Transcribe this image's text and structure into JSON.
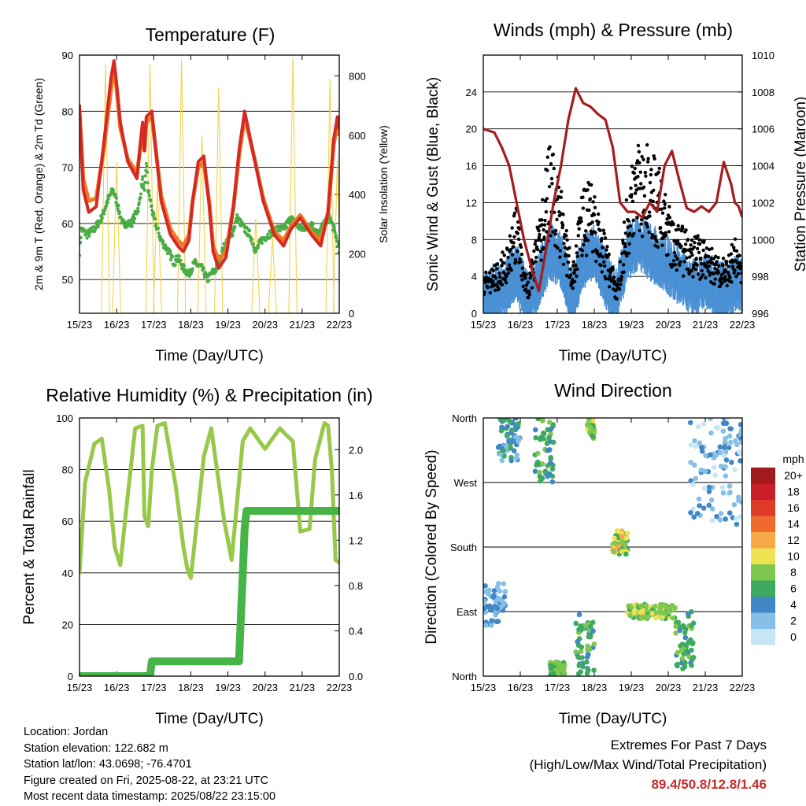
{
  "x_ticks": [
    "15/23",
    "16/23",
    "17/23",
    "18/23",
    "19/23",
    "20/23",
    "21/23",
    "22/23"
  ],
  "colors": {
    "t2m": "#d42a22",
    "t9m": "#f07a28",
    "td": "#4aac44",
    "solar": "#f5d24a",
    "wind": "#4a90d4",
    "gust": "#000000",
    "pressure": "#a41c1c",
    "rh": "#98c848",
    "precip": "#46b446",
    "extreme": "#cc2a2a"
  },
  "chart_data": [
    {
      "type": "line",
      "title": "Temperature (F)",
      "xlabel": "Time (Day/UTC)",
      "ylabel": "2m & 9m T (Red, Orange) & 2m Td (Green)",
      "y2label": "Solar Insolation (Yellow)",
      "x_ticks": [
        "15/23",
        "16/23",
        "17/23",
        "18/23",
        "19/23",
        "20/23",
        "21/23",
        "22/23"
      ],
      "x_unit": "days since 15/23",
      "xlim": [
        0,
        7
      ],
      "ylim": [
        44,
        90
      ],
      "yticks": [
        50,
        60,
        70,
        80,
        90
      ],
      "y2lim": [
        0,
        870
      ],
      "y2ticks": [
        0,
        200,
        400,
        600,
        800
      ],
      "series": [
        {
          "name": "2m T",
          "axis": "left",
          "color": "#d42a22",
          "x": [
            0,
            0.1,
            0.25,
            0.45,
            0.65,
            0.85,
            0.93,
            1.0,
            1.1,
            1.3,
            1.55,
            1.65,
            1.7,
            1.75,
            1.8,
            1.95,
            2.2,
            2.45,
            2.65,
            2.8,
            2.95,
            3.05,
            3.2,
            3.35,
            3.5,
            3.6,
            3.75,
            3.95,
            4.15,
            4.3,
            4.45,
            4.7,
            4.95,
            5.25,
            5.5,
            5.7,
            5.95,
            6.25,
            6.5,
            6.7,
            6.85,
            6.95,
            7.0
          ],
          "y": [
            81,
            66,
            62,
            63,
            74,
            86,
            89,
            85,
            78,
            71,
            68,
            75,
            78,
            73,
            79,
            80,
            64,
            58,
            56,
            55,
            57,
            64,
            71,
            72,
            63,
            55,
            52,
            54,
            63,
            73,
            80,
            72,
            64,
            58,
            56,
            59,
            61,
            58,
            56,
            62,
            75,
            79,
            77
          ]
        },
        {
          "name": "9m T",
          "axis": "left",
          "color": "#f07a28",
          "x": [
            0,
            0.1,
            0.25,
            0.45,
            0.65,
            0.85,
            0.93,
            1.0,
            1.1,
            1.3,
            1.55,
            1.65,
            1.7,
            1.75,
            1.8,
            1.95,
            2.2,
            2.45,
            2.65,
            2.8,
            2.95,
            3.05,
            3.2,
            3.35,
            3.5,
            3.6,
            3.75,
            3.95,
            4.15,
            4.3,
            4.45,
            4.7,
            4.95,
            5.25,
            5.5,
            5.7,
            5.95,
            6.25,
            6.5,
            6.7,
            6.85,
            6.95,
            7.0
          ],
          "y": [
            80,
            68,
            64,
            64.5,
            73,
            84,
            87.5,
            84,
            77,
            71.5,
            69,
            74,
            77,
            73,
            78,
            79,
            65,
            59,
            57,
            56,
            58,
            64,
            70,
            71,
            63.5,
            56,
            53.5,
            55,
            63,
            72,
            79,
            72,
            64.5,
            58.5,
            57,
            59.5,
            61.5,
            58.5,
            57,
            62,
            74,
            78,
            76
          ]
        },
        {
          "name": "2m Td",
          "axis": "left",
          "color": "#4aac44",
          "x": [
            0,
            0.05,
            0.2,
            0.4,
            0.6,
            0.75,
            0.9,
            1.0,
            1.15,
            1.4,
            1.6,
            1.7,
            1.75,
            1.8,
            1.85,
            2.0,
            2.2,
            2.4,
            2.55,
            2.65,
            2.8,
            2.95,
            3.1,
            3.3,
            3.45,
            3.55,
            3.7,
            3.9,
            4.1,
            4.25,
            4.45,
            4.6,
            4.75,
            4.9,
            5.1,
            5.3,
            5.5,
            5.7,
            5.8,
            6.0,
            6.25,
            6.45,
            6.6,
            6.75,
            6.9,
            7.0
          ],
          "y": [
            55,
            59,
            58,
            59,
            61,
            64,
            66,
            64,
            60,
            60,
            63,
            68,
            65,
            71,
            66,
            61,
            57,
            55,
            53,
            54,
            52,
            51,
            53,
            52,
            50,
            51,
            52,
            56,
            58,
            61,
            59,
            58,
            55,
            57,
            58,
            59,
            59,
            61,
            60,
            59,
            60,
            58,
            60,
            61,
            58,
            55
          ]
        },
        {
          "name": "Solar Insolation",
          "axis": "right",
          "color": "#f5d24a",
          "peaks": [
            {
              "x": 0.7,
              "y": 840
            },
            {
              "x": 1.0,
              "y": 510
            },
            {
              "x": 1.9,
              "y": 840
            },
            {
              "x": 2.1,
              "y": 440
            },
            {
              "x": 2.75,
              "y": 860
            },
            {
              "x": 3.3,
              "y": 600
            },
            {
              "x": 3.75,
              "y": 760
            },
            {
              "x": 4.75,
              "y": 320
            },
            {
              "x": 5.2,
              "y": 260
            },
            {
              "x": 5.75,
              "y": 860
            },
            {
              "x": 6.75,
              "y": 790
            },
            {
              "x": 6.95,
              "y": 520
            }
          ]
        }
      ]
    },
    {
      "type": "line",
      "title": "Winds (mph) & Pressure (mb)",
      "xlabel": "Time (Day/UTC)",
      "ylabel": "Sonic Wind & Gust (Blue, Black)",
      "y2label": "Station Pressure (Maroon)",
      "x_ticks": [
        "15/23",
        "16/23",
        "17/23",
        "18/23",
        "19/23",
        "20/23",
        "21/23",
        "22/23"
      ],
      "x_unit": "days since 15/23",
      "xlim": [
        0,
        7
      ],
      "ylim": [
        0,
        28
      ],
      "yticks": [
        0,
        4,
        8,
        12,
        16,
        20,
        24
      ],
      "y2lim": [
        996,
        1010
      ],
      "y2ticks": [
        996,
        998,
        1000,
        1002,
        1004,
        1006,
        1008,
        1010
      ],
      "series": [
        {
          "name": "Sonic Wind",
          "color": "#4a90d4",
          "x": [
            0,
            0.3,
            0.6,
            0.9,
            1.2,
            1.5,
            1.8,
            2.1,
            2.4,
            2.7,
            3.0,
            3.3,
            3.6,
            3.9,
            4.2,
            4.5,
            4.8,
            5.1,
            5.4,
            5.7,
            6.0,
            6.3,
            6.6,
            6.9,
            7.0
          ],
          "y": [
            2,
            2.5,
            3,
            5,
            1.5,
            4,
            7,
            6,
            2,
            6,
            7,
            4,
            2,
            7,
            8,
            7,
            6,
            5,
            4,
            3,
            4,
            3,
            2.5,
            4,
            3
          ]
        },
        {
          "name": "Gust",
          "color": "#000000",
          "x": [
            0,
            0.3,
            0.6,
            0.9,
            1.2,
            1.5,
            1.8,
            2.1,
            2.4,
            2.7,
            3.0,
            3.3,
            3.6,
            3.9,
            4.2,
            4.5,
            4.8,
            5.1,
            5.4,
            5.7,
            6.0,
            6.3,
            6.6,
            6.9,
            7.0
          ],
          "y": [
            4,
            5,
            7,
            11,
            3,
            10,
            18,
            13,
            5,
            14,
            13,
            8,
            3,
            13,
            19,
            17,
            15,
            10,
            9,
            8,
            8,
            6,
            6,
            9,
            5
          ]
        },
        {
          "name": "Station Pressure",
          "color": "#a41c1c",
          "x": [
            0,
            0.3,
            0.5,
            0.7,
            0.9,
            1.1,
            1.3,
            1.5,
            1.7,
            1.9,
            2.1,
            2.3,
            2.5,
            2.7,
            2.9,
            3.1,
            3.3,
            3.5,
            3.7,
            3.9,
            4.1,
            4.3,
            4.5,
            4.7,
            4.9,
            5.1,
            5.3,
            5.5,
            5.7,
            5.9,
            6.1,
            6.3,
            6.5,
            6.7,
            6.8,
            6.9,
            7.0
          ],
          "y": [
            1006,
            1005.8,
            1005,
            1004,
            1002,
            1000,
            998.5,
            997.2,
            999.5,
            1002,
            1004,
            1006.5,
            1008.2,
            1007.4,
            1007.2,
            1006.8,
            1006.5,
            1005,
            1002,
            1001.5,
            1001.5,
            1001.2,
            1002,
            1001.5,
            1004,
            1004.8,
            1003.2,
            1001.7,
            1001.5,
            1001.8,
            1001.5,
            1002,
            1004.2,
            1003,
            1002,
            1001.8,
            1001.2
          ]
        }
      ]
    },
    {
      "type": "line",
      "title": "Relative Humidity (%) & Precipitation (in)",
      "xlabel": "Time (Day/UTC)",
      "ylabel": "Percent & Total Rainfall",
      "x_ticks": [
        "15/23",
        "16/23",
        "17/23",
        "18/23",
        "19/23",
        "20/23",
        "21/23",
        "22/23"
      ],
      "x_unit": "days since 15/23",
      "xlim": [
        0,
        7
      ],
      "ylim": [
        0,
        100
      ],
      "yticks": [
        0,
        20,
        40,
        60,
        80,
        100
      ],
      "y2lim": [
        0,
        2.28
      ],
      "y2ticks": [
        0.0,
        0.4,
        0.8,
        1.2,
        1.6,
        2.0
      ],
      "series": [
        {
          "name": "Relative Humidity",
          "axis": "left",
          "color": "#98c848",
          "x": [
            0,
            0.15,
            0.4,
            0.6,
            0.8,
            0.95,
            1.1,
            1.3,
            1.5,
            1.7,
            1.75,
            1.85,
            1.95,
            2.1,
            2.3,
            2.6,
            2.8,
            2.9,
            3.0,
            3.15,
            3.35,
            3.55,
            3.9,
            4.1,
            4.4,
            4.6,
            4.8,
            5.0,
            5.2,
            5.4,
            5.6,
            5.75,
            5.95,
            6.2,
            6.35,
            6.6,
            6.7,
            6.8,
            6.9,
            7.0
          ],
          "y": [
            40,
            75,
            90,
            92,
            72,
            50,
            43,
            70,
            96,
            97,
            62,
            58,
            80,
            97,
            98,
            73,
            50,
            42,
            38,
            58,
            85,
            96,
            60,
            45,
            91,
            96,
            92,
            88,
            92,
            96,
            93,
            91,
            56,
            57,
            84,
            98,
            97,
            80,
            45,
            44
          ]
        },
        {
          "name": "Total Precipitation",
          "axis": "right",
          "color": "#46b446",
          "x": [
            0,
            1.9,
            1.95,
            4.3,
            4.32,
            4.4,
            4.45,
            4.5,
            7.0
          ],
          "y": [
            0.0,
            0.0,
            0.13,
            0.13,
            0.3,
            0.9,
            1.3,
            1.46,
            1.46
          ]
        }
      ]
    },
    {
      "type": "scatter",
      "title": "Wind Direction",
      "xlabel": "Time (Day/UTC)",
      "ylabel": "Direction (Colored By Speed)",
      "x_ticks": [
        "15/23",
        "16/23",
        "17/23",
        "18/23",
        "19/23",
        "20/23",
        "21/23",
        "22/23"
      ],
      "x_unit": "days since 15/23",
      "xlim": [
        0,
        7
      ],
      "y_unit": "degrees",
      "ylim": [
        0,
        360
      ],
      "ytick_labels": [
        "North",
        "East",
        "South",
        "West",
        "North"
      ],
      "yticks": [
        0,
        90,
        180,
        270,
        360
      ],
      "colorbar": {
        "title": "mph",
        "labels": [
          "20+",
          "18",
          "16",
          "14",
          "12",
          "10",
          "8",
          "6",
          "4",
          "2",
          "0"
        ],
        "colors": [
          "#a31a1e",
          "#c82026",
          "#de3a2a",
          "#f06a2c",
          "#f9a848",
          "#ece252",
          "#7ec850",
          "#3daa5f",
          "#3f87c5",
          "#86c0e8",
          "#c6e6f6"
        ]
      },
      "clusters": [
        {
          "x": [
            0,
            0.6
          ],
          "y": [
            70,
            130
          ],
          "speed": "2-4"
        },
        {
          "x": [
            0.4,
            1.0
          ],
          "y": [
            300,
            360
          ],
          "speed": "2-6"
        },
        {
          "x": [
            1.4,
            1.9
          ],
          "y": [
            270,
            360
          ],
          "speed": "4-8"
        },
        {
          "x": [
            1.8,
            2.2
          ],
          "y": [
            0,
            20
          ],
          "speed": "6-8"
        },
        {
          "x": [
            2.5,
            3.0
          ],
          "y": [
            0,
            90
          ],
          "speed": "4-8"
        },
        {
          "x": [
            2.8,
            3.0
          ],
          "y": [
            330,
            360
          ],
          "speed": "6-10"
        },
        {
          "x": [
            3.5,
            3.9
          ],
          "y": [
            170,
            205
          ],
          "speed": "6-12"
        },
        {
          "x": [
            3.9,
            5.2
          ],
          "y": [
            80,
            100
          ],
          "speed": "6-10"
        },
        {
          "x": [
            5.2,
            5.7
          ],
          "y": [
            10,
            90
          ],
          "speed": "4-8"
        },
        {
          "x": [
            5.6,
            7.0
          ],
          "y": [
            210,
            360
          ],
          "speed": "0-4"
        }
      ]
    }
  ],
  "info": {
    "location": "Location: Jordan",
    "elevation": "Station elevation: 122.682 m",
    "latlon": "Station lat/lon: 43.0698; -76.4701",
    "created": "Figure created on Fri, 2025-08-22, at 23:21 UTC",
    "recent": "Most recent data timestamp: 2025/08/22 23:15:00"
  },
  "extremes": {
    "line1": "Extremes For Past 7 Days",
    "line2": "(High/Low/Max Wind/Total Precipitation)",
    "values": "89.4/50.8/12.8/1.46"
  }
}
